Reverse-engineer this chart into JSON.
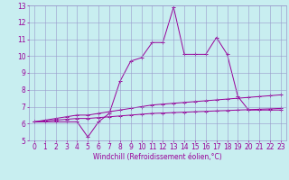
{
  "xlabel": "Windchill (Refroidissement éolien,°C)",
  "background_color": "#c8eef0",
  "grid_color": "#9999cc",
  "line_color": "#990099",
  "x_values": [
    0,
    1,
    2,
    3,
    4,
    5,
    6,
    7,
    8,
    9,
    10,
    11,
    12,
    13,
    14,
    15,
    16,
    17,
    18,
    19,
    20,
    21,
    22,
    23
  ],
  "line1_y": [
    6.1,
    6.1,
    6.1,
    6.1,
    6.1,
    5.2,
    6.1,
    6.6,
    8.5,
    9.7,
    9.9,
    10.8,
    10.8,
    12.9,
    10.1,
    10.1,
    10.1,
    11.1,
    10.1,
    7.6,
    6.8,
    6.8,
    6.8,
    6.8
  ],
  "line2_y": [
    6.1,
    6.2,
    6.3,
    6.4,
    6.5,
    6.5,
    6.6,
    6.7,
    6.8,
    6.9,
    7.0,
    7.1,
    7.15,
    7.2,
    7.25,
    7.3,
    7.35,
    7.4,
    7.45,
    7.5,
    7.55,
    7.6,
    7.65,
    7.7
  ],
  "line3_y": [
    6.1,
    6.15,
    6.2,
    6.25,
    6.3,
    6.3,
    6.35,
    6.4,
    6.45,
    6.5,
    6.55,
    6.6,
    6.62,
    6.65,
    6.67,
    6.7,
    6.72,
    6.75,
    6.77,
    6.8,
    6.82,
    6.85,
    6.87,
    6.9
  ],
  "ylim": [
    5,
    13
  ],
  "xlim": [
    -0.5,
    23.5
  ],
  "yticks": [
    5,
    6,
    7,
    8,
    9,
    10,
    11,
    12,
    13
  ],
  "xticks": [
    0,
    1,
    2,
    3,
    4,
    5,
    6,
    7,
    8,
    9,
    10,
    11,
    12,
    13,
    14,
    15,
    16,
    17,
    18,
    19,
    20,
    21,
    22,
    23
  ],
  "tick_fontsize": 5.5,
  "xlabel_fontsize": 5.5,
  "linewidth": 0.7,
  "markersize": 3,
  "markeredgewidth": 0.7
}
